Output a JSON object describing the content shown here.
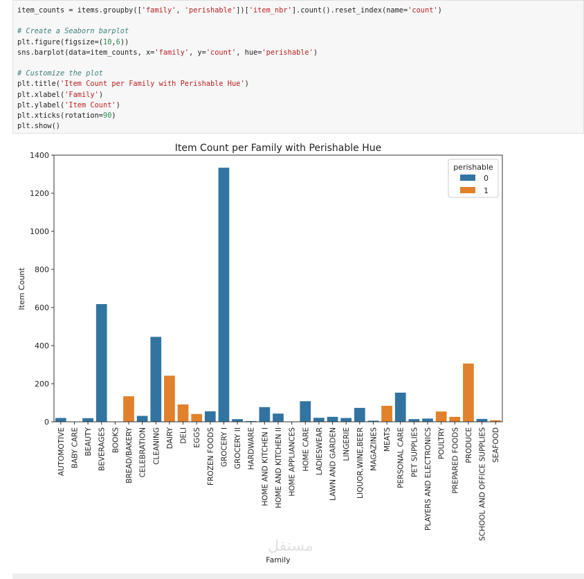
{
  "code_lines": [
    "item_counts = items.groupby(['family', 'perishable'])['item_nbr'].count().reset_index(name='count')",
    "",
    "# Create a Seaborn barplot",
    "plt.figure(figsize=(10,6))",
    "sns.barplot(data=item_counts, x='family', y='count', hue='perishable')",
    "",
    "# Customize the plot",
    "plt.title('Item Count per Family with Perishable Hue')",
    "plt.xlabel('Family')",
    "plt.ylabel('Item Count')",
    "plt.xticks(rotation=90)",
    "plt.show()"
  ],
  "watermark": "مستقل mostaql.com",
  "chart_data": {
    "type": "bar",
    "title": "Item Count per Family with Perishable Hue",
    "xlabel": "Family",
    "ylabel": "Item Count",
    "ylim": [
      0,
      1400
    ],
    "yticks": [
      0,
      200,
      400,
      600,
      800,
      1000,
      1200,
      1400
    ],
    "grid": false,
    "legend": {
      "title": "perishable",
      "placement": "top-right",
      "entries": [
        {
          "label": "0",
          "color": "#3274a1"
        },
        {
          "label": "1",
          "color": "#e1812c"
        }
      ]
    },
    "categories": [
      "AUTOMOTIVE",
      "BABY CARE",
      "BEAUTY",
      "BEVERAGES",
      "BOOKS",
      "BREAD/BAKERY",
      "CELEBRATION",
      "CLEANING",
      "DAIRY",
      "DELI",
      "EGGS",
      "FROZEN FOODS",
      "GROCERY I",
      "GROCERY II",
      "HARDWARE",
      "HOME AND KITCHEN I",
      "HOME AND KITCHEN II",
      "HOME APPLIANCES",
      "HOME CARE",
      "LADIESWEAR",
      "LAWN AND GARDEN",
      "LINGERIE",
      "LIQUOR,WINE,BEER",
      "MAGAZINES",
      "MEATS",
      "PERSONAL CARE",
      "PET SUPPLIES",
      "PLAYERS AND ELECTRONICS",
      "POULTRY",
      "PREPARED FOODS",
      "PRODUCE",
      "SCHOOL AND OFFICE SUPPLIES",
      "SEAFOOD"
    ],
    "values": [
      20,
      1,
      19,
      618,
      1,
      134,
      31,
      446,
      242,
      91,
      41,
      55,
      1334,
      14,
      4,
      77,
      43,
      1,
      108,
      21,
      26,
      20,
      73,
      6,
      84,
      153,
      14,
      17,
      54,
      26,
      306,
      15,
      8
    ],
    "perishable": [
      0,
      0,
      0,
      0,
      0,
      1,
      0,
      0,
      1,
      1,
      1,
      0,
      0,
      0,
      0,
      0,
      0,
      0,
      0,
      0,
      0,
      0,
      0,
      0,
      1,
      0,
      0,
      0,
      1,
      1,
      1,
      0,
      1
    ]
  }
}
